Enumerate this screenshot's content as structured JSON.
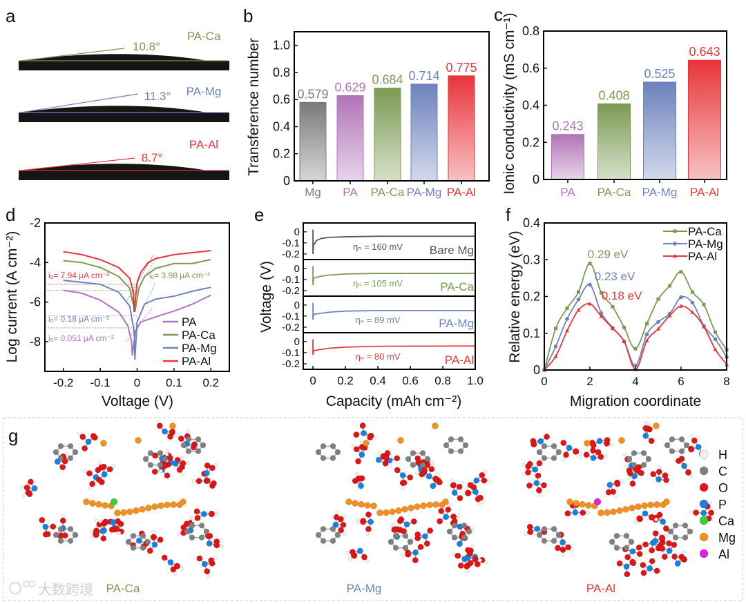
{
  "panel_letters": {
    "a": "a",
    "b": "b",
    "c": "c",
    "d": "d",
    "e": "e",
    "f": "f",
    "g": "g"
  },
  "colors": {
    "Mg": "#7a7a7a",
    "PA": "#b174b8",
    "PA-Ca": "#7a9a52",
    "PA-Mg": "#6b82bd",
    "PA-Al": "#e8343a"
  },
  "panel_a": {
    "drops": [
      {
        "name": "PA-Ca",
        "angle": "10.8°",
        "color": "#7a9a52"
      },
      {
        "name": "PA-Mg",
        "angle": "11.3°",
        "color": "#6b82bd"
      },
      {
        "name": "PA-Al",
        "angle": "8.7°",
        "color": "#e8343a"
      }
    ]
  },
  "chart_data": [
    {
      "id": "b",
      "type": "bar",
      "title": "",
      "xlabel": "",
      "ylabel": "Transference number",
      "categories": [
        "Mg",
        "PA",
        "PA-Ca",
        "PA-Mg",
        "PA-Al"
      ],
      "values": [
        0.579,
        0.629,
        0.684,
        0.714,
        0.775
      ],
      "value_labels": [
        "0.579",
        "0.629",
        "0.684",
        "0.714",
        "0.775"
      ],
      "ylim": [
        0,
        1.1
      ],
      "yticks": [
        "0",
        "0.2",
        "0.4",
        "0.6",
        "0.8",
        "1.0"
      ]
    },
    {
      "id": "c",
      "type": "bar",
      "title": "",
      "xlabel": "",
      "ylabel": "Ionic conductivity (mS cm⁻¹)",
      "categories": [
        "PA",
        "PA-Ca",
        "PA-Mg",
        "PA-Al"
      ],
      "values": [
        0.243,
        0.408,
        0.525,
        0.643
      ],
      "value_labels": [
        "0.243",
        "0.408",
        "0.525",
        "0.643"
      ],
      "ylim": [
        0,
        0.8
      ],
      "yticks": [
        "0",
        "0.2",
        "0.4",
        "0.6",
        "0.8"
      ]
    },
    {
      "id": "d",
      "type": "line",
      "xlabel": "Voltage (V)",
      "ylabel": "Log current (A cm⁻²)",
      "xlim": [
        -0.25,
        0.25
      ],
      "ylim": [
        -9.5,
        -2
      ],
      "xticks": [
        "-0.2",
        "-0.1",
        "0",
        "0.1",
        "0.2"
      ],
      "yticks": [
        "-8",
        "-6",
        "-4",
        "-2"
      ],
      "legend": "bottom-right",
      "series": [
        {
          "name": "PA",
          "x": [
            -0.2,
            -0.15,
            -0.1,
            -0.05,
            -0.025,
            -0.015,
            -0.013,
            -0.005,
            0.01,
            0.05,
            0.1,
            0.15,
            0.2
          ],
          "y": [
            -5.4,
            -5.55,
            -5.9,
            -6.5,
            -7.2,
            -8.0,
            -8.7,
            -7.5,
            -7.0,
            -6.75,
            -6.45,
            -6.1,
            -5.65
          ]
        },
        {
          "name": "PA-Ca",
          "x": [
            -0.2,
            -0.15,
            -0.1,
            -0.05,
            -0.02,
            -0.006,
            0.005,
            0.02,
            0.05,
            0.1,
            0.15,
            0.2
          ],
          "y": [
            -3.9,
            -4.0,
            -4.25,
            -4.7,
            -5.3,
            -6.5,
            -5.3,
            -4.7,
            -4.3,
            -4.05,
            -4.05,
            -3.85
          ]
        },
        {
          "name": "PA-Mg",
          "x": [
            -0.2,
            -0.15,
            -0.1,
            -0.05,
            -0.02,
            -0.008,
            -0.006,
            0,
            0.02,
            0.05,
            0.1,
            0.15,
            0.2
          ],
          "y": [
            -4.9,
            -5.0,
            -5.1,
            -5.5,
            -6.2,
            -7.5,
            -8.9,
            -7.0,
            -6.1,
            -5.85,
            -5.7,
            -5.45,
            -5.25
          ]
        },
        {
          "name": "PA-Al",
          "x": [
            -0.2,
            -0.15,
            -0.1,
            -0.05,
            -0.02,
            -0.01,
            -0.008,
            0,
            0.01,
            0.03,
            0.05,
            0.1,
            0.15,
            0.2
          ],
          "y": [
            -3.45,
            -3.6,
            -3.85,
            -4.25,
            -4.8,
            -5.5,
            -6.5,
            -5.0,
            -4.5,
            -4.0,
            -3.8,
            -3.6,
            -3.5,
            -3.4
          ]
        }
      ],
      "annotations": [
        {
          "text": "iₒ= 7.94 μA cm⁻²",
          "series": "PA-Al",
          "level": -5.1
        },
        {
          "text": "iₒ= 3.98 μA cm⁻²",
          "series": "PA-Ca",
          "level": -5.4
        },
        {
          "text": "iₒ= 0.18 μA cm⁻²",
          "series": "PA-Mg",
          "level": -6.7
        },
        {
          "text": "iₒ= 0.051 μA cm⁻²",
          "series": "PA",
          "level": -7.3
        }
      ]
    },
    {
      "id": "e",
      "type": "line",
      "xlabel": "Capacity (mAh cm⁻²)",
      "ylabel": "Voltage (V)",
      "xlim": [
        -0.06,
        1.0
      ],
      "ylim": [
        -0.25,
        0.08
      ],
      "xticks": [
        "0",
        "0.2",
        "0.4",
        "0.6",
        "0.8",
        "1.0"
      ],
      "yticks": [
        "0",
        "-0.1",
        "-0.2"
      ],
      "series": [
        {
          "name": "Bare Mg",
          "overpotential": "ηₙ  = 160 mV",
          "x": [
            0,
            0,
            0.004,
            0.02,
            0.05,
            0.1,
            0.2,
            0.4,
            1.0
          ],
          "y": [
            0.02,
            -0.2,
            -0.12,
            -0.08,
            -0.06,
            -0.05,
            -0.045,
            -0.04,
            -0.04
          ]
        },
        {
          "name": "PA-Ca",
          "overpotential": "ηₙ  = 105 mV",
          "x": [
            0,
            0,
            0.004,
            0.02,
            0.05,
            0.1,
            0.2,
            0.4,
            1.0
          ],
          "y": [
            0.02,
            -0.15,
            -0.09,
            -0.08,
            -0.07,
            -0.06,
            -0.05,
            -0.045,
            -0.045
          ]
        },
        {
          "name": "PA-Mg",
          "overpotential": "ηₙ  = 89 mV",
          "x": [
            0,
            0,
            0.004,
            0.02,
            0.05,
            0.1,
            0.2,
            0.4,
            1.0
          ],
          "y": [
            0.02,
            -0.13,
            -0.085,
            -0.08,
            -0.075,
            -0.065,
            -0.055,
            -0.05,
            -0.05
          ]
        },
        {
          "name": "PA-Al",
          "overpotential": "ηₙ  = 80 mV",
          "x": [
            0,
            0,
            0.004,
            0.02,
            0.05,
            0.1,
            0.2,
            0.4,
            1.0
          ],
          "y": [
            0.02,
            -0.12,
            -0.08,
            -0.078,
            -0.07,
            -0.06,
            -0.05,
            -0.042,
            -0.04
          ]
        }
      ]
    },
    {
      "id": "f",
      "type": "line",
      "xlabel": "Migration coordinate",
      "ylabel": "Relative energy (eV)",
      "xlim": [
        0,
        8
      ],
      "ylim": [
        0,
        0.4
      ],
      "xticks": [
        "0",
        "2",
        "4",
        "6",
        "8"
      ],
      "yticks": [
        "0",
        "0.1",
        "0.2",
        "0.3",
        "0.4"
      ],
      "legend": "top-right",
      "x": [
        0,
        0.5,
        1,
        1.5,
        2,
        2.5,
        3,
        3.5,
        4,
        4.5,
        5,
        5.5,
        6,
        6.5,
        7,
        7.5,
        8
      ],
      "series": [
        {
          "name": "PA-Ca",
          "marker": "square",
          "barrier": "0.29 eV",
          "y": [
            0,
            0.113,
            0.168,
            0.212,
            0.29,
            0.21,
            0.172,
            0.116,
            0.058,
            0.126,
            0.193,
            0.229,
            0.267,
            0.212,
            0.178,
            0.103,
            0.055
          ]
        },
        {
          "name": "PA-Mg",
          "marker": "circle",
          "barrier": "0.23 eV",
          "y": [
            0,
            0.064,
            0.139,
            0.192,
            0.232,
            0.155,
            0.115,
            0.078,
            0.012,
            0.097,
            0.131,
            0.153,
            0.198,
            0.183,
            0.12,
            0.084,
            0.035
          ]
        },
        {
          "name": "PA-Al",
          "marker": "triangle",
          "barrier": "0.18 eV",
          "y": [
            0,
            0.037,
            0.107,
            0.163,
            0.18,
            0.146,
            0.113,
            0.078,
            0.002,
            0.08,
            0.112,
            0.148,
            0.174,
            0.157,
            0.118,
            0.056,
            0.015
          ]
        }
      ]
    }
  ],
  "panel_g": {
    "structures": [
      {
        "name": "PA-Ca",
        "dopant": "Ca"
      },
      {
        "name": "PA-Mg",
        "dopant": null
      },
      {
        "name": "PA-Al",
        "dopant": "Al"
      }
    ],
    "legend": [
      {
        "label": "H",
        "color": "#f2f2f2"
      },
      {
        "label": "C",
        "color": "#808080"
      },
      {
        "label": "O",
        "color": "#e01515"
      },
      {
        "label": "P",
        "color": "#1a7fe0"
      },
      {
        "label": "Ca",
        "color": "#38d038"
      },
      {
        "label": "Mg",
        "color": "#f09020"
      },
      {
        "label": "Al",
        "color": "#e020e0"
      }
    ],
    "watermark": "大数跨境"
  }
}
